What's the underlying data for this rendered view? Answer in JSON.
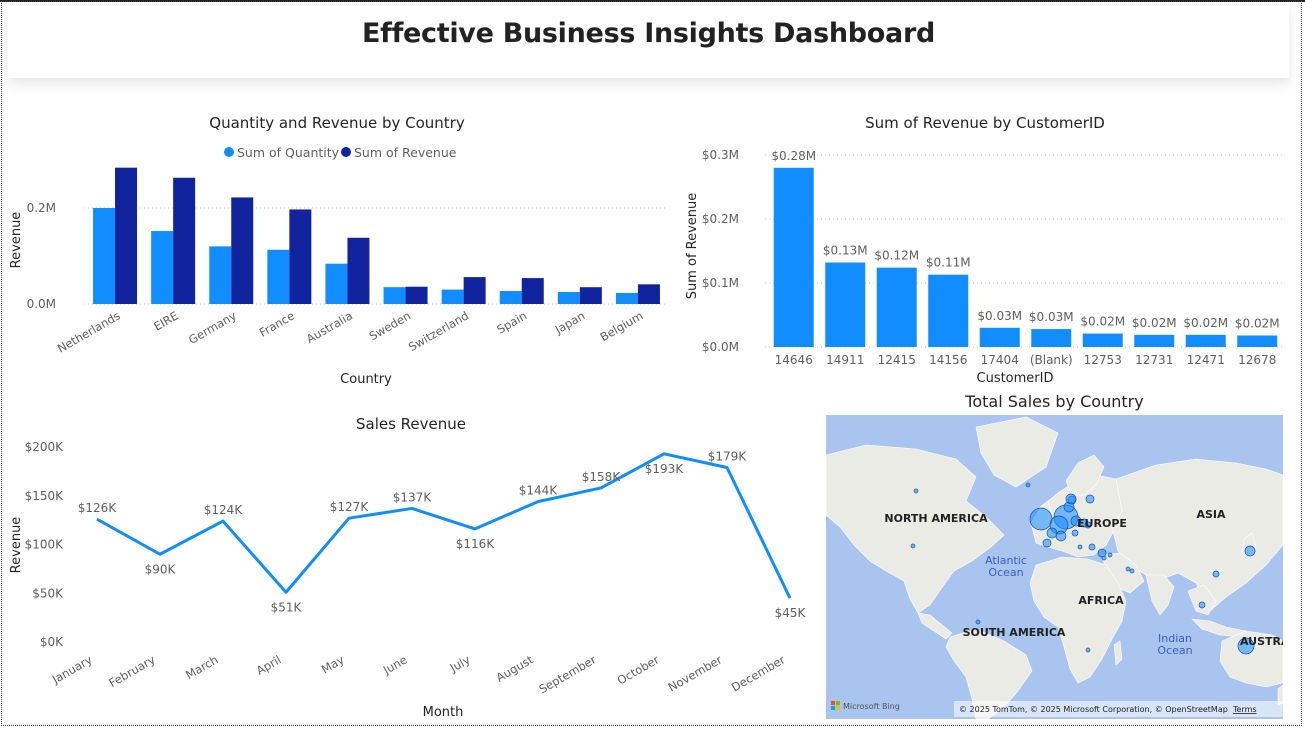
{
  "dashboard": {
    "title": "Effective Business Insights Dashboard"
  },
  "colors": {
    "quantity": "#118dff",
    "revenue": "#12239e",
    "bar": "#118dff",
    "line": "#118dff",
    "grid": "#c8c8c8",
    "text": "#605e5c",
    "title": "#252423",
    "water": "#a9c4ef",
    "land": "#ebebe6",
    "bubble": "#118dff"
  },
  "chart_data": [
    {
      "type": "bar",
      "title": "Quantity and Revenue by Country",
      "xlabel": "Country",
      "ylabel": "Revenue",
      "ylim": [
        0,
        300000
      ],
      "yticks": [
        0,
        200000
      ],
      "ytick_labels": [
        "0.0M",
        "0.2M"
      ],
      "legend": "top-center",
      "grid": true,
      "categories": [
        "Netherlands",
        "EIRE",
        "Germany",
        "France",
        "Australia",
        "Sweden",
        "Switzerland",
        "Spain",
        "Japan",
        "Belgium"
      ],
      "series": [
        {
          "name": "Sum of Quantity",
          "values": [
            200000,
            152000,
            120000,
            113000,
            84000,
            35000,
            30000,
            27000,
            25000,
            23000
          ]
        },
        {
          "name": "Sum of Revenue",
          "values": [
            284000,
            263000,
            222000,
            197000,
            138000,
            36000,
            56000,
            54000,
            35000,
            41000
          ]
        }
      ]
    },
    {
      "type": "bar",
      "title": "Sum of Revenue by CustomerID",
      "xlabel": "CustomerID",
      "ylabel": "Sum of Revenue",
      "ylim": [
        0,
        300000
      ],
      "yticks": [
        0,
        100000,
        200000,
        300000
      ],
      "ytick_labels": [
        "$0.0M",
        "$0.1M",
        "$0.2M",
        "$0.3M"
      ],
      "grid": true,
      "categories": [
        "14646",
        "14911",
        "12415",
        "14156",
        "17404",
        "(Blank)",
        "12753",
        "12731",
        "12471",
        "12678"
      ],
      "values": [
        280000,
        132000,
        124000,
        113000,
        30000,
        28000,
        21000,
        19000,
        19000,
        18000
      ],
      "data_labels": [
        "$0.28M",
        "$0.13M",
        "$0.12M",
        "$0.11M",
        "$0.03M",
        "$0.03M",
        "$0.02M",
        "$0.02M",
        "$0.02M",
        "$0.02M"
      ]
    },
    {
      "type": "line",
      "title": "Sales Revenue",
      "xlabel": "Month",
      "ylabel": "Revenue",
      "ylim": [
        0,
        200000
      ],
      "yticks": [
        0,
        50000,
        100000,
        150000,
        200000
      ],
      "ytick_labels": [
        "$0K",
        "$50K",
        "$100K",
        "$150K",
        "$200K"
      ],
      "grid": false,
      "categories": [
        "January",
        "February",
        "March",
        "April",
        "May",
        "June",
        "July",
        "August",
        "September",
        "October",
        "November",
        "December"
      ],
      "values": [
        126000,
        90000,
        124000,
        51000,
        127000,
        137000,
        116000,
        144000,
        158000,
        193000,
        179000,
        45000
      ],
      "data_labels": [
        "$126K",
        "$90K",
        "$124K",
        "$51K",
        "$127K",
        "$137K",
        "$116K",
        "$144K",
        "$158K",
        "$193K",
        "$179K",
        "$45K"
      ]
    },
    {
      "type": "map",
      "title": "Total Sales by Country",
      "region_labels": [
        "NORTH AMERICA",
        "EUROPE",
        "ASIA",
        "AFRICA",
        "SOUTH AMERICA",
        "AUSTRA"
      ],
      "water_labels": [
        "Atlantic\nOcean",
        "Indian\nOcean"
      ],
      "attribution": "© 2025 TomTom, © 2025 Microsoft Corporation, © OpenStreetMap",
      "terms": "Terms",
      "provider": "Microsoft Bing"
    }
  ]
}
